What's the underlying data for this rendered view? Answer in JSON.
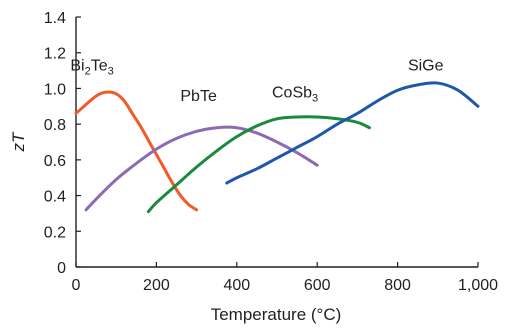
{
  "chart_data": {
    "type": "line",
    "title": "",
    "xlabel": "Temperature (°C)",
    "ylabel": "zT",
    "xlim": [
      0,
      1000
    ],
    "ylim": [
      0,
      1.4
    ],
    "x_ticks": [
      0,
      200,
      400,
      600,
      800,
      1000
    ],
    "x_tick_labels": [
      "0",
      "200",
      "400",
      "600",
      "800",
      "1,000"
    ],
    "y_ticks": [
      0,
      0.2,
      0.4,
      0.6,
      0.8,
      1.0,
      1.2,
      1.4
    ],
    "y_tick_labels": [
      "0",
      "0.2",
      "0.4",
      "0.6",
      "0.8",
      "1.0",
      "1.2",
      "1.4"
    ],
    "grid": false,
    "legend": "inline labels",
    "series": [
      {
        "name": "Bi2Te3",
        "label_main": "Bi",
        "label_sub1": "2",
        "label_mid": "Te",
        "label_sub2": "3",
        "color": "#f15a29",
        "x": [
          0,
          20,
          40,
          60,
          80,
          100,
          120,
          140,
          160,
          180,
          200,
          220,
          240,
          260,
          280,
          300
        ],
        "y": [
          0.86,
          0.9,
          0.94,
          0.97,
          0.98,
          0.97,
          0.93,
          0.86,
          0.79,
          0.71,
          0.63,
          0.55,
          0.47,
          0.4,
          0.35,
          0.32
        ]
      },
      {
        "name": "PbTe",
        "label_main": "PbTe",
        "color": "#8c6bb1",
        "x": [
          25,
          50,
          100,
          150,
          200,
          250,
          300,
          350,
          400,
          450,
          500,
          550,
          600
        ],
        "y": [
          0.32,
          0.38,
          0.49,
          0.58,
          0.66,
          0.72,
          0.76,
          0.78,
          0.78,
          0.75,
          0.7,
          0.64,
          0.57
        ]
      },
      {
        "name": "CoSb3",
        "label_main": "CoSb",
        "label_sub1": "3",
        "color": "#1a8a3c",
        "x": [
          180,
          200,
          250,
          300,
          350,
          400,
          450,
          500,
          550,
          600,
          650,
          700,
          730
        ],
        "y": [
          0.31,
          0.36,
          0.46,
          0.56,
          0.65,
          0.73,
          0.79,
          0.83,
          0.84,
          0.84,
          0.83,
          0.81,
          0.78
        ]
      },
      {
        "name": "SiGe",
        "label_main": "SiGe",
        "color": "#1f58a8",
        "x": [
          375,
          400,
          450,
          500,
          550,
          600,
          650,
          700,
          750,
          800,
          850,
          900,
          950,
          1000
        ],
        "y": [
          0.47,
          0.5,
          0.55,
          0.61,
          0.67,
          0.73,
          0.8,
          0.86,
          0.93,
          0.99,
          1.02,
          1.03,
          0.99,
          0.9
        ]
      }
    ]
  }
}
